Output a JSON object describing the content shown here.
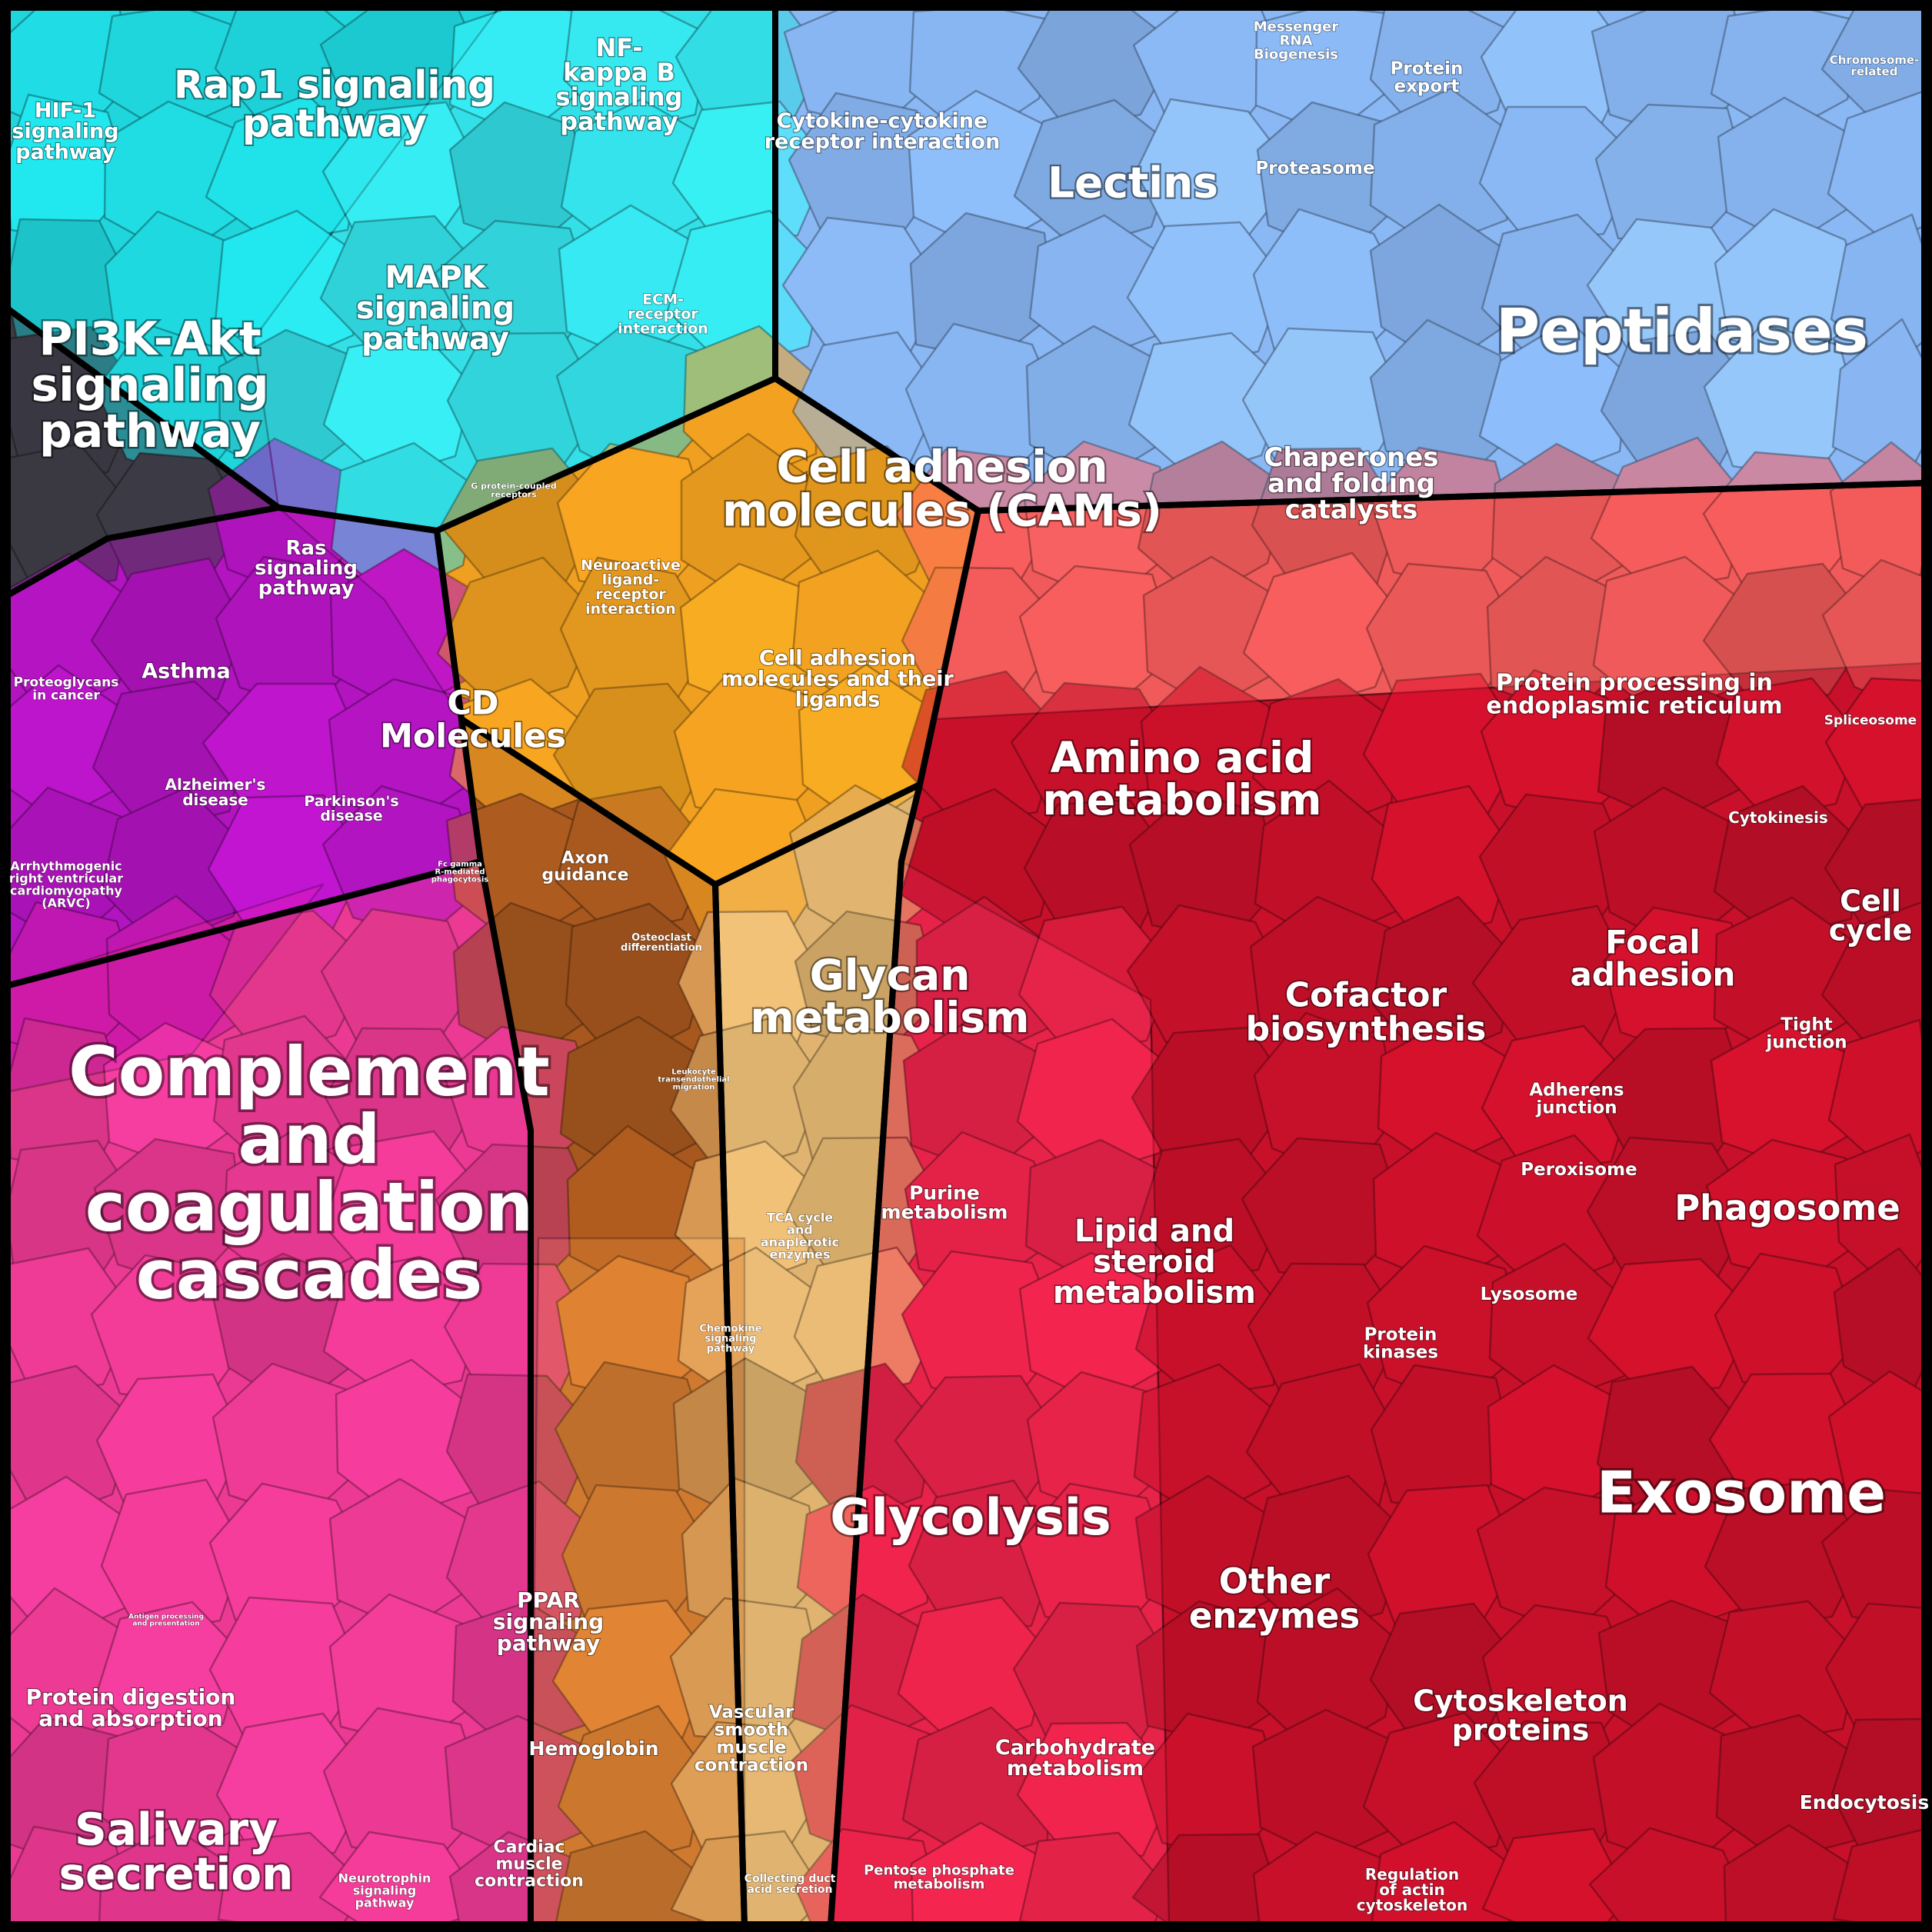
{
  "diagram": {
    "type": "voronoi-treemap",
    "groups": [
      {
        "name": "signaling",
        "color": "#1fd6dd"
      },
      {
        "name": "peptidases",
        "color": "#8ab8f5"
      },
      {
        "name": "metabolism",
        "color": "#f0a020"
      },
      {
        "name": "immune",
        "color": "#b214c0"
      },
      {
        "name": "neuro",
        "color": "#3c3a44"
      },
      {
        "name": "exosome",
        "color": "#c8102a"
      },
      {
        "name": "pink",
        "color": "#ec3a94"
      },
      {
        "name": "glycolysis",
        "color": "#a8581e"
      },
      {
        "name": "enzymes",
        "color": "#e0b470"
      }
    ],
    "labels": [
      {
        "id": "hif1",
        "text": [
          "HIF-1",
          "signaling",
          "pathway"
        ]
      },
      {
        "id": "rap1",
        "text": [
          "Rap1 signaling",
          "pathway"
        ]
      },
      {
        "id": "nfkb",
        "text": [
          "NF-",
          "kappa B",
          "signaling",
          "pathway"
        ]
      },
      {
        "id": "cytokine",
        "text": [
          "Cytokine-cytokine",
          "receptor interaction"
        ]
      },
      {
        "id": "lectins",
        "text": [
          "Lectins"
        ]
      },
      {
        "id": "mrna",
        "text": [
          "Messenger",
          "RNA",
          "Biogenesis"
        ]
      },
      {
        "id": "protexport",
        "text": [
          "Protein",
          "export"
        ]
      },
      {
        "id": "chromosome",
        "text": [
          "Chromosome-",
          "related"
        ]
      },
      {
        "id": "proteasome",
        "text": [
          "Proteasome"
        ]
      },
      {
        "id": "peptidases",
        "text": [
          "Peptidases"
        ]
      },
      {
        "id": "mapk",
        "text": [
          "MAPK",
          "signaling",
          "pathway"
        ]
      },
      {
        "id": "ecm",
        "text": [
          "ECM-",
          "receptor",
          "interaction"
        ]
      },
      {
        "id": "pi3k",
        "text": [
          "PI3K-Akt",
          "signaling",
          "pathway"
        ]
      },
      {
        "id": "cams",
        "text": [
          "Cell adhesion",
          "molecules (CAMs)"
        ]
      },
      {
        "id": "chaperones",
        "text": [
          "Chaperones",
          "and folding",
          "catalysts"
        ]
      },
      {
        "id": "gpcr",
        "text": [
          "G protein-coupled",
          "receptors"
        ]
      },
      {
        "id": "ras",
        "text": [
          "Ras",
          "signaling",
          "pathway"
        ]
      },
      {
        "id": "neuroactive",
        "text": [
          "Neuroactive",
          "ligand-",
          "receptor",
          "interaction"
        ]
      },
      {
        "id": "asthma",
        "text": [
          "Asthma"
        ]
      },
      {
        "id": "cellad2",
        "text": [
          "Cell adhesion",
          "molecules and their",
          "ligands"
        ]
      },
      {
        "id": "er",
        "text": [
          "Protein processing in",
          "endoplasmic reticulum"
        ]
      },
      {
        "id": "proteoglycans",
        "text": [
          "Proteoglycans",
          "in cancer"
        ]
      },
      {
        "id": "cd",
        "text": [
          "CD",
          "Molecules"
        ]
      },
      {
        "id": "spliceosome",
        "text": [
          "Spliceosome"
        ]
      },
      {
        "id": "aminoacid",
        "text": [
          "Amino acid",
          "metabolism"
        ]
      },
      {
        "id": "alzheimer",
        "text": [
          "Alzheimer's",
          "disease"
        ]
      },
      {
        "id": "parkinson",
        "text": [
          "Parkinson's",
          "disease"
        ]
      },
      {
        "id": "cytokinesis",
        "text": [
          "Cytokinesis"
        ]
      },
      {
        "id": "axon",
        "text": [
          "Axon",
          "guidance"
        ]
      },
      {
        "id": "fcgamma",
        "text": [
          "Fc gamma",
          "R-mediated",
          "phagocytosis"
        ]
      },
      {
        "id": "arvc",
        "text": [
          "Arrhythmogenic",
          "right ventricular",
          "cardiomyopathy",
          "(ARVC)"
        ]
      },
      {
        "id": "cellcycle",
        "text": [
          "Cell",
          "cycle"
        ]
      },
      {
        "id": "osteoclast",
        "text": [
          "Osteoclast",
          "differentiation"
        ]
      },
      {
        "id": "focal",
        "text": [
          "Focal",
          "adhesion"
        ]
      },
      {
        "id": "glycan",
        "text": [
          "Glycan",
          "metabolism"
        ]
      },
      {
        "id": "cofactor",
        "text": [
          "Cofactor",
          "biosynthesis"
        ]
      },
      {
        "id": "tight",
        "text": [
          "Tight",
          "junction"
        ]
      },
      {
        "id": "leukocyte",
        "text": [
          "Leukocyte",
          "transendothelial",
          "migration"
        ]
      },
      {
        "id": "adherens",
        "text": [
          "Adherens",
          "junction"
        ]
      },
      {
        "id": "complement",
        "text": [
          "Complement",
          "and",
          "coagulation",
          "cascades"
        ]
      },
      {
        "id": "peroxisome",
        "text": [
          "Peroxisome"
        ]
      },
      {
        "id": "phagosome",
        "text": [
          "Phagosome"
        ]
      },
      {
        "id": "purine",
        "text": [
          "Purine",
          "metabolism"
        ]
      },
      {
        "id": "tca",
        "text": [
          "TCA cycle",
          "and",
          "anaplerotic",
          "enzymes"
        ]
      },
      {
        "id": "lipid",
        "text": [
          "Lipid and",
          "steroid",
          "metabolism"
        ]
      },
      {
        "id": "lysosome",
        "text": [
          "Lysosome"
        ]
      },
      {
        "id": "chemokine",
        "text": [
          "Chemokine",
          "signaling",
          "pathway"
        ]
      },
      {
        "id": "kinases",
        "text": [
          "Protein",
          "kinases"
        ]
      },
      {
        "id": "exosome",
        "text": [
          "Exosome"
        ]
      },
      {
        "id": "glycolysis",
        "text": [
          "Glycolysis"
        ]
      },
      {
        "id": "other",
        "text": [
          "Other",
          "enzymes"
        ]
      },
      {
        "id": "antigen",
        "text": [
          "Antigen processing",
          "and presentation"
        ]
      },
      {
        "id": "ppar",
        "text": [
          "PPAR",
          "signaling",
          "pathway"
        ]
      },
      {
        "id": "protdigest",
        "text": [
          "Protein digestion",
          "and absorption"
        ]
      },
      {
        "id": "cytoskeleton",
        "text": [
          "Cytoskeleton",
          "proteins"
        ]
      },
      {
        "id": "vascular",
        "text": [
          "Vascular",
          "smooth",
          "muscle",
          "contraction"
        ]
      },
      {
        "id": "hemoglobin",
        "text": [
          "Hemoglobin"
        ]
      },
      {
        "id": "carbo",
        "text": [
          "Carbohydrate",
          "metabolism"
        ]
      },
      {
        "id": "endocytosis",
        "text": [
          "Endocytosis"
        ]
      },
      {
        "id": "salivary",
        "text": [
          "Salivary",
          "secretion"
        ]
      },
      {
        "id": "cardiac",
        "text": [
          "Cardiac",
          "muscle",
          "contraction"
        ]
      },
      {
        "id": "collecting",
        "text": [
          "Collecting duct",
          "acid secretion"
        ]
      },
      {
        "id": "pentose",
        "text": [
          "Pentose phosphate",
          "metabolism"
        ]
      },
      {
        "id": "neurotrophin",
        "text": [
          "Neurotrophin",
          "signaling",
          "pathway"
        ]
      },
      {
        "id": "actin",
        "text": [
          "Regulation",
          "of actin",
          "cytoskeleton"
        ]
      }
    ]
  }
}
